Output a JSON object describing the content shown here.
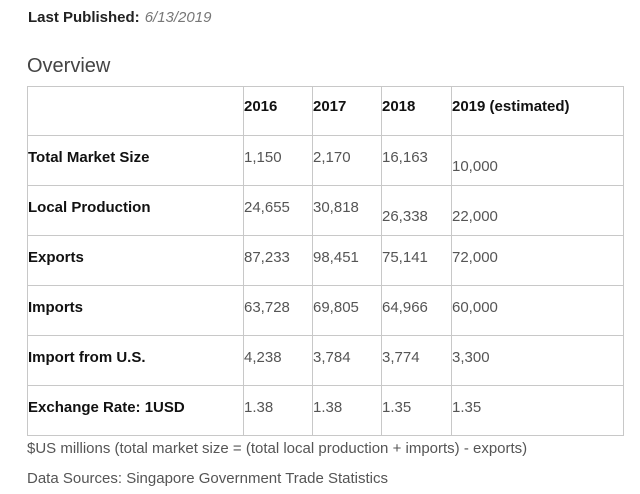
{
  "published": {
    "label": "Last Published:",
    "date": "6/13/2019"
  },
  "overview_title": "Overview",
  "table": {
    "header": [
      "",
      "2016",
      "2017",
      "2018",
      "2019 (estimated)"
    ],
    "rows": [
      {
        "label": "Total Market Size",
        "values": [
          "1,150",
          "2,170",
          "16,163",
          "10,000"
        ]
      },
      {
        "label": "Local Production",
        "values": [
          "24,655",
          "30,818",
          "26,338",
          "22,000"
        ]
      },
      {
        "label": "Exports",
        "values": [
          "87,233",
          "98,451",
          "75,141",
          "72,000"
        ]
      },
      {
        "label": "Imports",
        "values": [
          "63,728",
          "69,805",
          "64,966",
          "60,000"
        ]
      },
      {
        "label": "Import from U.S.",
        "values": [
          "4,238",
          "3,784",
          "3,774",
          "3,300"
        ]
      },
      {
        "label": "Exchange Rate: 1USD",
        "values": [
          "1.38",
          "1.38",
          "1.35",
          "1.35"
        ]
      }
    ]
  },
  "footnote": "$US millions (total market size = (total local production + imports) - exports)",
  "source": "Data Sources: Singapore Government Trade Statistics"
}
